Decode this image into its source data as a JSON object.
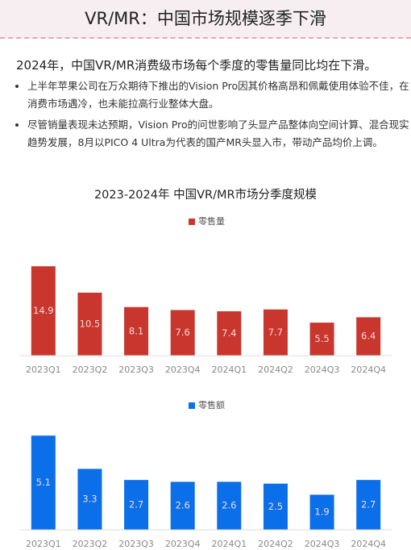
{
  "header": {
    "title": "VR/MR：中国市场规模逐季下滑"
  },
  "summary": {
    "headline": "2024年，中国VR/MR消费级市场每个季度的零售量同比均在下滑。",
    "bullets": [
      "上半年苹果公司在万众期待下推出的Vision Pro因其价格高昂和佩戴使用体验不佳，在消费市场遇冷，也未能拉高行业整体大盘。",
      "尽管销量表现未达预期，Vision Pro的问世影响了头显产品整体向空间计算、混合现实趋势发展，8月以PICO 4 Ultra为代表的国产MR头显入市，带动产品均价上调。"
    ]
  },
  "chart_data": [
    {
      "type": "bar",
      "title": "2023-2024年 中国VR/MR市场分季度规模",
      "categories": [
        "2023Q1",
        "2023Q2",
        "2023Q3",
        "2023Q4",
        "2024Q1",
        "2024Q2",
        "2024Q3",
        "2024Q4"
      ],
      "series": [
        {
          "name": "零售量",
          "color": "#c8362d",
          "values": [
            14.9,
            10.5,
            8.1,
            7.6,
            7.4,
            7.7,
            5.5,
            6.4
          ]
        }
      ],
      "ylim": [
        0,
        16
      ]
    },
    {
      "type": "bar",
      "categories": [
        "2023Q1",
        "2023Q2",
        "2023Q3",
        "2023Q4",
        "2024Q1",
        "2024Q2",
        "2024Q3",
        "2024Q4"
      ],
      "series": [
        {
          "name": "零售额",
          "color": "#0a6fe8",
          "values": [
            5.1,
            3.3,
            2.7,
            2.6,
            2.6,
            2.5,
            1.9,
            2.7
          ]
        }
      ],
      "ylim": [
        0,
        5.5
      ]
    }
  ]
}
